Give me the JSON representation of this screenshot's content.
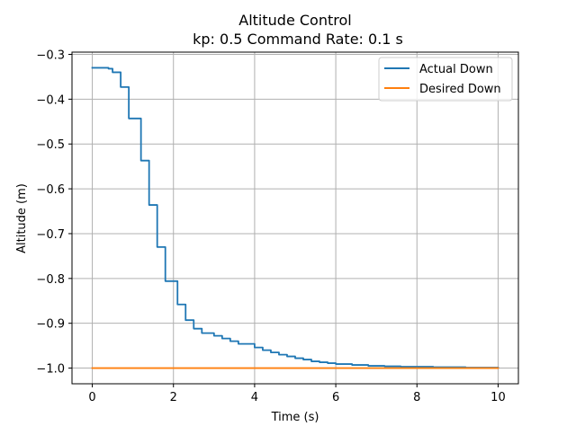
{
  "chart_data": {
    "type": "line",
    "title": "Altitude Control",
    "subtitle": "kp: 0.5 Command Rate: 0.1 s",
    "xlabel": "Time (s)",
    "ylabel": "Altitude (m)",
    "xlim": [
      -0.5,
      10.5
    ],
    "ylim": [
      -1.035,
      -0.295
    ],
    "xticks": [
      0,
      2,
      4,
      6,
      8,
      10
    ],
    "yticks": [
      -1.0,
      -0.9,
      -0.8,
      -0.7,
      -0.6,
      -0.5,
      -0.4,
      -0.3
    ],
    "xtick_labels": [
      "0",
      "2",
      "4",
      "6",
      "8",
      "10"
    ],
    "ytick_labels": [
      "−1.0",
      "−0.9",
      "−0.8",
      "−0.7",
      "−0.6",
      "−0.5",
      "−0.4",
      "−0.3"
    ],
    "grid": true,
    "legend_position": "top-right",
    "series": [
      {
        "name": "Actual Down",
        "color": "#1f77b4",
        "step": true,
        "x": [
          0,
          0.1,
          0.2,
          0.3,
          0.4,
          0.5,
          0.6,
          0.7,
          0.8,
          0.9,
          1.0,
          1.1,
          1.2,
          1.3,
          1.4,
          1.5,
          1.6,
          1.7,
          1.8,
          1.9,
          2.0,
          2.1,
          2.2,
          2.3,
          2.4,
          2.5,
          2.6,
          2.7,
          2.8,
          2.9,
          3.0,
          3.2,
          3.4,
          3.6,
          3.8,
          4.0,
          4.2,
          4.4,
          4.6,
          4.8,
          5.0,
          5.2,
          5.4,
          5.6,
          5.8,
          6.0,
          6.4,
          6.8,
          7.2,
          7.6,
          8.0,
          8.4,
          8.8,
          9.2,
          9.6,
          10.0
        ],
        "y": [
          -0.33,
          -0.33,
          -0.33,
          -0.33,
          -0.332,
          -0.34,
          -0.34,
          -0.373,
          -0.373,
          -0.443,
          -0.443,
          -0.443,
          -0.537,
          -0.537,
          -0.636,
          -0.636,
          -0.73,
          -0.73,
          -0.806,
          -0.806,
          -0.806,
          -0.858,
          -0.858,
          -0.893,
          -0.893,
          -0.912,
          -0.912,
          -0.922,
          -0.922,
          -0.922,
          -0.928,
          -0.934,
          -0.94,
          -0.946,
          -0.946,
          -0.954,
          -0.96,
          -0.965,
          -0.97,
          -0.974,
          -0.978,
          -0.981,
          -0.985,
          -0.987,
          -0.989,
          -0.991,
          -0.993,
          -0.995,
          -0.996,
          -0.997,
          -0.997,
          -0.998,
          -0.998,
          -0.999,
          -0.999,
          -0.999
        ]
      },
      {
        "name": "Desired Down",
        "color": "#ff7f0e",
        "step": false,
        "x": [
          0,
          10
        ],
        "y": [
          -1.0,
          -1.0
        ]
      }
    ]
  }
}
